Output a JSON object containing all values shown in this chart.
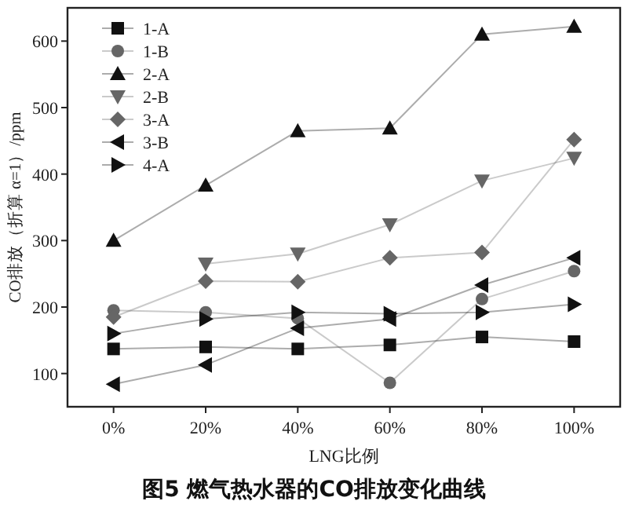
{
  "chart_data": {
    "type": "line",
    "xlabel": "LNG比例",
    "ylabel": "CO排放（折算 α=1）/ppm",
    "annotations": [
      "图5 燃气热水器的CO排放变化曲线"
    ],
    "x": [
      0,
      20,
      40,
      60,
      80,
      100
    ],
    "xlim": [
      -10,
      110
    ],
    "xticks": [
      {
        "value": 0,
        "label": "0%"
      },
      {
        "value": 20,
        "label": "20%"
      },
      {
        "value": 40,
        "label": "40%"
      },
      {
        "value": 60,
        "label": "60%"
      },
      {
        "value": 80,
        "label": "80%"
      },
      {
        "value": 100,
        "label": "100%"
      }
    ],
    "ylim": [
      50,
      650
    ],
    "yticks": [
      100,
      200,
      300,
      400,
      500,
      600
    ],
    "grid": false,
    "legend": "top left",
    "line_style": "solid",
    "series": [
      {
        "name": "1-A",
        "color": "#111111",
        "marker": "square",
        "values": [
          137,
          140,
          137,
          143,
          155,
          148
        ]
      },
      {
        "name": "1-B",
        "color": "#666666",
        "marker": "circle",
        "values": [
          195,
          192,
          183,
          86,
          212,
          254
        ]
      },
      {
        "name": "2-A",
        "color": "#111111",
        "marker": "triangle",
        "values": [
          300,
          383,
          465,
          469,
          610,
          622
        ]
      },
      {
        "name": "2-B",
        "color": "#666666",
        "marker": "triangle-down",
        "values": [
          null,
          265,
          280,
          324,
          390,
          424
        ]
      },
      {
        "name": "3-A",
        "color": "#666666",
        "marker": "diamond",
        "values": [
          185,
          239,
          238,
          274,
          282,
          452
        ]
      },
      {
        "name": "3-B",
        "color": "#111111",
        "marker": "triangle-left",
        "values": [
          84,
          113,
          168,
          182,
          233,
          274
        ]
      },
      {
        "name": "4-A",
        "color": "#111111",
        "marker": "triangle-right",
        "values": [
          160,
          182,
          192,
          190,
          192,
          204
        ]
      }
    ]
  }
}
